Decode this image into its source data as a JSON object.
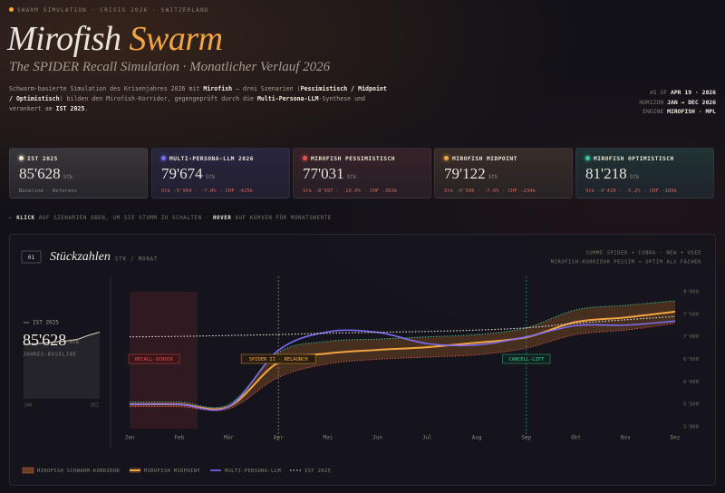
{
  "header": {
    "kicker": "SWARM SIMULATION · CRISIS 2026 · SWITZERLAND",
    "title_a": "Mirofish",
    "title_b": "Swarm",
    "subtitle": "The SPIDER Recall Simulation · Monatlicher Verlauf 2026"
  },
  "intro": [
    "Schwarm-basierte Simulation des Krisenjahres 2026 mit ",
    "Mirofish",
    " — drei Szenarien (",
    "Pessimistisch / Midpoint / Optimistisch",
    ") bilden den Mirofish-Korridor, gegengeprüft durch die ",
    "Multi-Persona-LLM",
    "-Synthese und verankert am ",
    "IST 2025",
    "."
  ],
  "meta": [
    {
      "label": "AS OF",
      "value": "APR 19 · 2026"
    },
    {
      "label": "HORIZON",
      "value": "JAN → DEC 2026"
    },
    {
      "label": "ENGINE",
      "value": "MIROFISH · MPL"
    }
  ],
  "kpis": [
    {
      "label": "IST 2025",
      "value": "85'628",
      "unit": "Stk",
      "detail": "Baseline · Referenz",
      "color": "#f3e6c8"
    },
    {
      "label": "MULTI-PERSONA-LLM 2026",
      "value": "79'674",
      "unit": "Stk",
      "detail": "Stk -5'954 · -7.0% · CHF -425k",
      "color": "#7c6cf2"
    },
    {
      "label": "MIROFISH PESSIMISTISCH",
      "value": "77'031",
      "unit": "Stk",
      "detail": "Stk -8'597 · -10.0% · CHF -363k",
      "color": "#e5544c"
    },
    {
      "label": "MIROFISH MIDPOINT",
      "value": "79'122",
      "unit": "Stk",
      "detail": "Stk -6'506 · -7.6% · CHF -234k",
      "color": "#f2a541"
    },
    {
      "label": "MIROFISH OPTIMISTISCH",
      "value": "81'218",
      "unit": "Stk",
      "detail": "Stk -4'410 · -5.2% · CHF -189k",
      "color": "#3cc99a"
    }
  ],
  "hint": [
    "←",
    "KLICK",
    "AUF SZENARIEN OBEN, UM SIE STUMM ZU SCHALTEN ·",
    "HOVER",
    "AUF KURVEN FÜR MONATSWERTE"
  ],
  "panel": {
    "index": "01",
    "title": "Stückzahlen",
    "unit": "STK / MONAT",
    "notes": [
      "SUMME SPIDER + COBRA · NEW + USED",
      "MIROFISH-KORRIDOR PESSIM → OPTIM ALS FÄCHER"
    ],
    "stat": {
      "label": "IST 2025",
      "value": "85'628",
      "unit": "Stk",
      "caption": "JAHRES-BASELINE",
      "start": "JAN",
      "end": "DEZ"
    }
  },
  "chart_data": {
    "type": "line",
    "categories": [
      "Jan",
      "Feb",
      "Mär",
      "Apr",
      "Mai",
      "Jun",
      "Jul",
      "Aug",
      "Sep",
      "Okt",
      "Nov",
      "Dez"
    ],
    "band": {
      "name": "MIROFISH SCHWARM-KORRIDOR",
      "color": "#c8782c",
      "upper_color": "#3cc99a",
      "lower_color": "#e5544c",
      "lower": [
        5450,
        5450,
        5400,
        6100,
        6400,
        6500,
        6550,
        6600,
        6750,
        7050,
        7150,
        7300
      ],
      "upper": [
        5550,
        5550,
        5500,
        6650,
        6900,
        6950,
        7000,
        7050,
        7200,
        7600,
        7700,
        7800
      ]
    },
    "series": [
      {
        "name": "MIROFISH MIDPOINT",
        "color": "#f2a541",
        "values": [
          5500,
          5500,
          5450,
          6430,
          6630,
          6710,
          6770,
          6870,
          6990,
          7330,
          7430,
          7560
        ]
      },
      {
        "name": "MULTI-PERSONA-LLM",
        "color": "#7c6cf2",
        "values": [
          5500,
          5500,
          5450,
          6700,
          7110,
          7100,
          6850,
          6820,
          7000,
          7250,
          7260,
          7350
        ]
      },
      {
        "name": "IST 2025",
        "color": "#e8e4dc",
        "values": [
          7000,
          7010,
          7030,
          7050,
          7080,
          7100,
          7120,
          7150,
          7200,
          7300,
          7380,
          7450
        ]
      }
    ],
    "ylim": [
      5000,
      8000
    ],
    "yticks": [
      {
        "value": 5000,
        "label": "5'000"
      },
      {
        "value": 5500,
        "label": "5'500"
      },
      {
        "value": 6000,
        "label": "6'000"
      },
      {
        "value": 6500,
        "label": "6'500"
      },
      {
        "value": 7000,
        "label": "7'000"
      },
      {
        "value": 7500,
        "label": "7'500"
      },
      {
        "value": 8000,
        "label": "8'000"
      }
    ],
    "annotations": [
      "RECALL-SCHOCK",
      "SPIDER II · RELAUNCH",
      "CANCELL-LIFT"
    ]
  }
}
